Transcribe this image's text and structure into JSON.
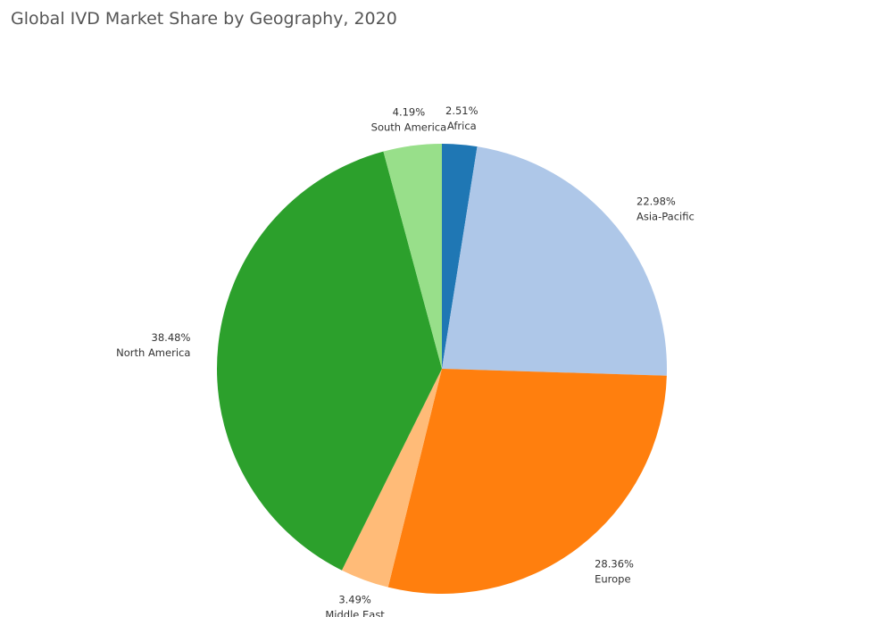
{
  "chart_data": {
    "type": "pie",
    "title": "Global IVD Market Share by Geography, 2020",
    "start_angle": "12 o'clock, clockwise",
    "categories": [
      "Africa",
      "Asia-Pacific",
      "Europe",
      "Middle East",
      "North America",
      "South America"
    ],
    "values": [
      2.51,
      22.98,
      28.36,
      3.49,
      38.48,
      4.19
    ],
    "labels": [
      "2.51%",
      "22.98%",
      "28.36%",
      "3.49%",
      "38.48%",
      "4.19%"
    ],
    "colors": [
      "#1f77b4",
      "#aec7e8",
      "#ff7f0e",
      "#ffbb78",
      "#2ca02c",
      "#98df8a"
    ],
    "legend": "none"
  }
}
